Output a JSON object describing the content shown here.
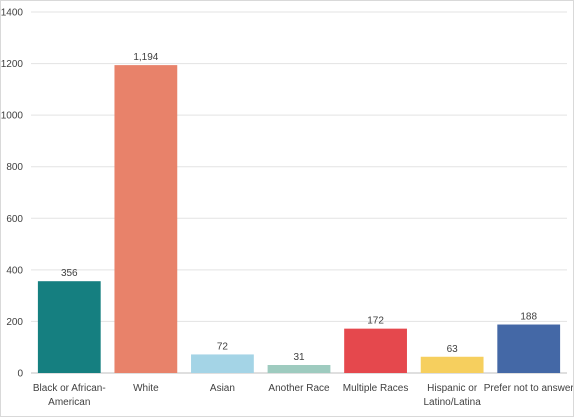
{
  "chart_data": {
    "type": "bar",
    "categories": [
      [
        "Black or African-",
        "American"
      ],
      [
        "White"
      ],
      [
        "Asian"
      ],
      [
        "Another Race"
      ],
      [
        "Multiple Races"
      ],
      [
        "Hispanic or",
        "Latino/Latina"
      ],
      [
        "Prefer not to answer"
      ]
    ],
    "values": [
      356,
      1194,
      72,
      31,
      172,
      63,
      188
    ],
    "data_labels": [
      "356",
      "1,194",
      "72",
      "31",
      "172",
      "63",
      "188"
    ],
    "colors": [
      "#157f80",
      "#e8826a",
      "#a4d4e6",
      "#9ecbbf",
      "#e5484d",
      "#f6cf5e",
      "#4468a6"
    ],
    "ylim": [
      0,
      1400
    ],
    "yticks": [
      0,
      200,
      400,
      600,
      800,
      1000,
      1200,
      1400
    ],
    "title": "",
    "xlabel": "",
    "ylabel": "",
    "grid": true,
    "legend": "none"
  }
}
